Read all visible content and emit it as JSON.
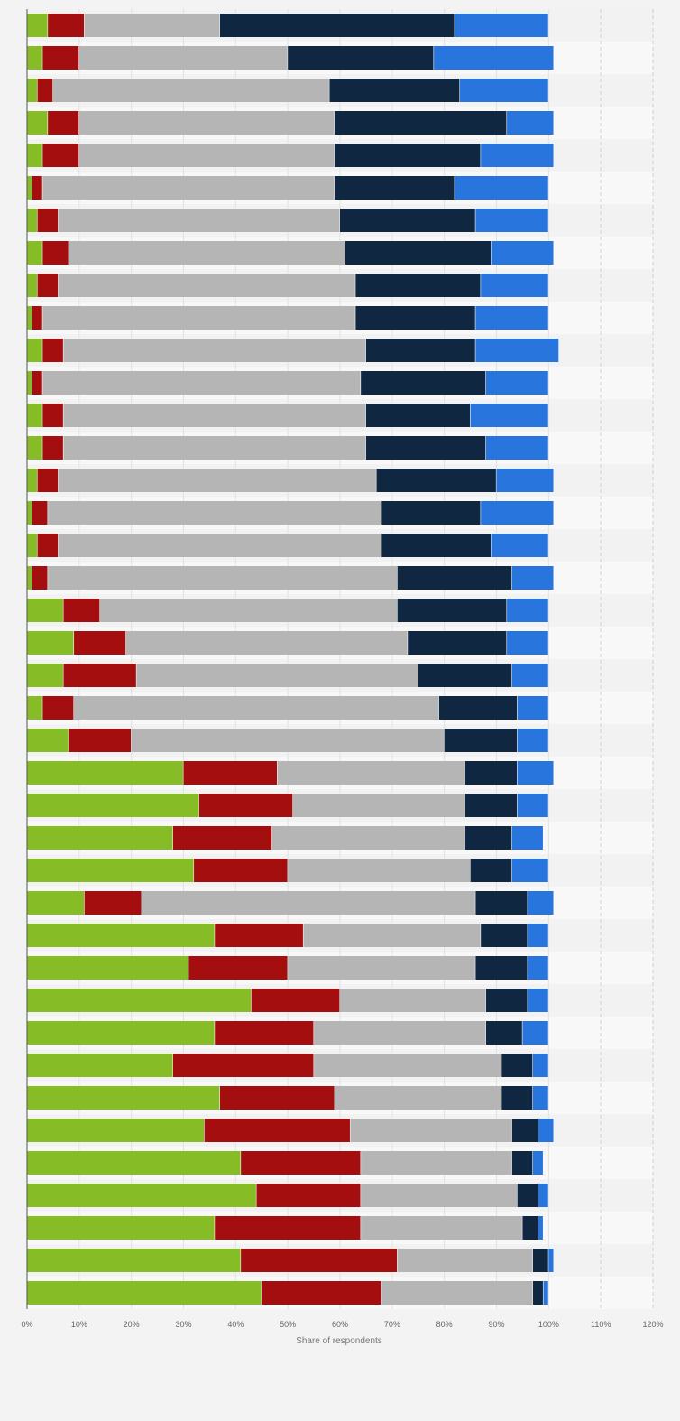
{
  "chart_data": {
    "type": "bar",
    "orientation": "horizontal",
    "stacked": true,
    "xlabel": "Share of respondents",
    "xlim": [
      0,
      120
    ],
    "x_ticks": [
      "0%",
      "10%",
      "20%",
      "30%",
      "40%",
      "50%",
      "60%",
      "70%",
      "80%",
      "90%",
      "100%",
      "110%",
      "120%"
    ],
    "grid": true,
    "legend": "none",
    "colors": [
      "#86bc25",
      "#a50e0e",
      "#b5b5b5",
      "#0f2741",
      "#2876dd"
    ],
    "series": [
      {
        "values": [
          4,
          3,
          2,
          4,
          3,
          1,
          2,
          3,
          2,
          1,
          3,
          1,
          3,
          3,
          2,
          1,
          2,
          1,
          7,
          9,
          7,
          3,
          8,
          30,
          33,
          28,
          32,
          11,
          36,
          31,
          43,
          36,
          28,
          37,
          34,
          41,
          44,
          36,
          41,
          45
        ]
      },
      {
        "values": [
          7,
          7,
          3,
          6,
          7,
          2,
          4,
          5,
          4,
          2,
          4,
          2,
          4,
          4,
          4,
          3,
          4,
          3,
          7,
          10,
          14,
          6,
          12,
          18,
          18,
          19,
          18,
          11,
          17,
          19,
          17,
          19,
          27,
          22,
          28,
          23,
          20,
          28,
          30,
          23
        ]
      },
      {
        "values": [
          26,
          40,
          53,
          49,
          49,
          56,
          54,
          53,
          57,
          60,
          58,
          61,
          58,
          58,
          61,
          64,
          62,
          67,
          57,
          54,
          54,
          70,
          60,
          36,
          33,
          37,
          35,
          64,
          34,
          36,
          28,
          33,
          36,
          32,
          31,
          29,
          30,
          31,
          26,
          29
        ]
      },
      {
        "values": [
          45,
          28,
          25,
          33,
          28,
          23,
          26,
          28,
          24,
          23,
          21,
          24,
          20,
          23,
          23,
          19,
          21,
          22,
          21,
          19,
          18,
          15,
          14,
          10,
          10,
          9,
          8,
          10,
          9,
          10,
          8,
          7,
          6,
          6,
          5,
          4,
          4,
          3,
          3,
          2
        ]
      },
      {
        "values": [
          18,
          23,
          17,
          9,
          14,
          18,
          14,
          12,
          13,
          14,
          16,
          12,
          15,
          12,
          11,
          14,
          11,
          8,
          8,
          8,
          7,
          6,
          6,
          7,
          6,
          6,
          7,
          5,
          4,
          4,
          4,
          5,
          3,
          3,
          3,
          2,
          2,
          1,
          1,
          1
        ]
      }
    ]
  }
}
